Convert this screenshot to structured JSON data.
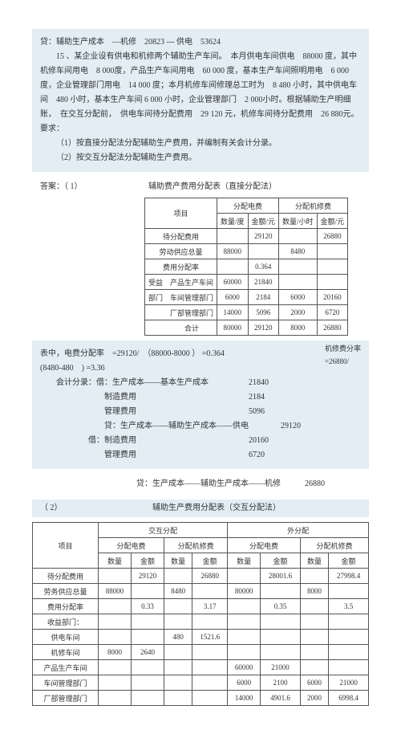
{
  "top": {
    "line1": "贷：辅助生产成本　—机修　20823 --- 供电　53624",
    "para15": "15 、某企业设有供电和机修两个辅助生产车间。　本月供电车间供电　88000 度，其中机修车间用电　8 000度，产品生产车间用电　60 000 度，基本生产车间照明用电　6 000 度，企业管理部门用电　14 000 度；本月机修车间修理总工时为　8 480 小时，其中供电车间　480 小时，基本生产车间 6 000 小时，企业管理部门　2 000小时。根据辅助生产明细账，　在交互分配前，　供电车间待分配费用　29 120 元，机修车间待分配费用　26 880元。",
    "req": "要求：",
    "req1": "（1）按直接分配法分配辅助生产费用，并编制有关会计分录。",
    "req2": "（2）按交互分配法分配辅助生产费用。"
  },
  "ans1_label": "答案：（ 1）",
  "table1": {
    "title": "辅助费产费用分配表（直接分配法）",
    "h_item": "项目",
    "h_elec": "分配电费",
    "h_repair": "分配机修费",
    "h_qty_d": "数量/度",
    "h_amt1": "金额/元",
    "h_qty_h": "数量/小时",
    "h_amt2": "金额/元",
    "r1": [
      "待分配费用",
      "",
      "29120",
      "",
      "26880"
    ],
    "r2": [
      "劳动供应总量",
      "88000",
      "",
      "8480",
      ""
    ],
    "r3": [
      "费用分配率",
      "",
      "0.364",
      "",
      ""
    ],
    "r4": [
      "受益　产品生产车间",
      "60000",
      "21840",
      "",
      ""
    ],
    "r5": [
      "部门　车间管理部门",
      "6000",
      "2184",
      "6000",
      "20160"
    ],
    "r6": [
      "　　　厂部管理部门",
      "14000",
      "5096",
      "2000",
      "6720"
    ],
    "r7": [
      "　　　合计",
      "80000",
      "29120",
      "8000",
      "26880"
    ]
  },
  "mid": {
    "rate_note": "机修费分率\n=26880/",
    "calc1": "表中，电费分配率　=29120/　（88000-8000 ） =0.364",
    "calc2": "(8480-480　) =3.36",
    "entry_head": "会计分录：借：生产成本——基本生产成本",
    "v1": "21840",
    "l2": "制造费用",
    "v2": "2184",
    "l3": "管理费用",
    "v3": "5096",
    "l4": "贷：生产成本——辅助生产成本——供电",
    "v4": "29120",
    "l5": "借：制造费用",
    "v5": "20160",
    "l6": "管理费用",
    "v6": "6720",
    "l7": "贷：生产成本——辅助生产成本——机修",
    "v7": "26880"
  },
  "part2_label": "（ 2）",
  "table2": {
    "title": "辅助生产费用分配表（交互分配法）",
    "h_item": "项目",
    "h_cross": "交互分配",
    "h_out": "外分配",
    "h_elec": "分配电费",
    "h_repair": "分配机修费",
    "h_qty": "数量",
    "h_amt": "金额",
    "rows": [
      [
        "待分配费用",
        "",
        "29120",
        "",
        "26880",
        "",
        "28001.6",
        "",
        "27998.4"
      ],
      [
        "劳务供应总量",
        "88000",
        "",
        "8480",
        "",
        "80000",
        "",
        "8000",
        ""
      ],
      [
        "费用分配率",
        "",
        "0.33",
        "",
        "3.17",
        "",
        "0.35",
        "",
        "3.5"
      ],
      [
        "收益部门：",
        "",
        "",
        "",
        "",
        "",
        "",
        "",
        ""
      ],
      [
        "供电车间",
        "",
        "",
        "480",
        "1521.6",
        "",
        "",
        "",
        ""
      ],
      [
        "机修车间",
        "8000",
        "2640",
        "",
        "",
        "",
        "",
        "",
        ""
      ],
      [
        "产品生产车间",
        "",
        "",
        "",
        "",
        "60000",
        "21000",
        "",
        ""
      ],
      [
        "车间管理部门",
        "",
        "",
        "",
        "",
        "6000",
        "2100",
        "6000",
        "21000"
      ],
      [
        "厂部管理部门",
        "",
        "",
        "",
        "",
        "14000",
        "4901.6",
        "2000",
        "6998.4"
      ]
    ]
  }
}
